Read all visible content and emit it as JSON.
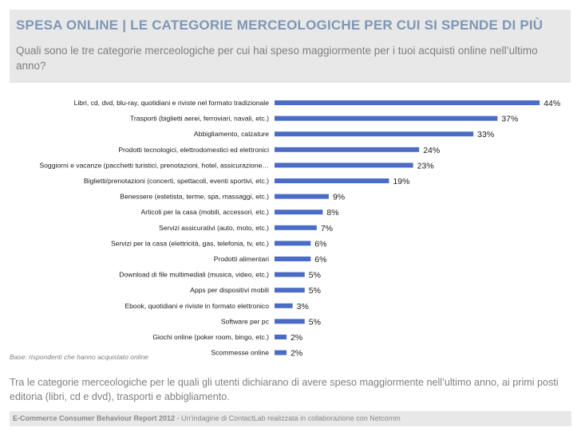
{
  "header": {
    "title": "SPESA ONLINE | LE CATEGORIE MERCEOLOGICHE PER CUI SI SPENDE DI PIÙ",
    "question": "Quali sono le tre categorie merceologiche per cui hai speso maggiormente per i tuoi acquisti online nell’ultimo anno?"
  },
  "colors": {
    "bar": "#4a6cc4",
    "title": "#7f97b5",
    "panel": "#e8e8e8"
  },
  "chart_data": {
    "type": "bar",
    "orientation": "horizontal",
    "unit": "%",
    "xlim": [
      0,
      45
    ],
    "grid": false,
    "categories": [
      "Libri, cd, dvd, blu-ray, quotidiani e riviste nel formato tradizionale",
      "Trasporti (biglietti aerei, ferroviari, navali, etc.)",
      "Abbigliamento, calzature",
      "Prodotti tecnologici, elettrodomestici ed elettronici",
      "Soggiorni e vacanze (pacchetti turistici, prenotazioni, hotel, assicurazione…",
      "Biglietti/prenotazioni (concerti, spettacoli, eventi sportivi, etc.)",
      "Benessere (estetista, terme, spa, massaggi, etc.)",
      "Articoli per la casa (mobili, accessori, etc.)",
      "Servizi assicurativi (auto, moto, etc.)",
      "Servizi per la casa (elettricità, gas, telefonia, tv, etc.)",
      "Prodotti alimentari",
      "Download di file multimediali (musica, video, etc.)",
      "Apps per dispositivi mobili",
      "Ebook, quotidiani e riviste in formato elettronico",
      "Software per pc",
      "Giochi online (poker room, bingo, etc.)",
      "Scommesse online"
    ],
    "values": [
      44,
      37,
      33,
      24,
      23,
      19,
      9,
      8,
      7,
      6,
      6,
      5,
      5,
      3,
      5,
      2,
      2
    ],
    "value_labels": [
      "44%",
      "37%",
      "33%",
      "24%",
      "23%",
      "19%",
      "9%",
      "8%",
      "7%",
      "6%",
      "6%",
      "5%",
      "5%",
      "3%",
      "5%",
      "2%",
      "2%"
    ]
  },
  "notes": {
    "base": "Base: rispondenti che hanno acquistato online",
    "summary": "Tra le categorie merceologiche per le quali gli utenti dichiarano di avere speso maggiormente nell’ultimo anno, ai primi posti editoria (libri, cd e dvd), trasporti e abbigliamento."
  },
  "footer": {
    "report": "E-Commerce Consumer Behaviour Report 2012",
    "credit": " - Un’indagine di ContactLab realizzata in collaborazione con Netcomm"
  }
}
